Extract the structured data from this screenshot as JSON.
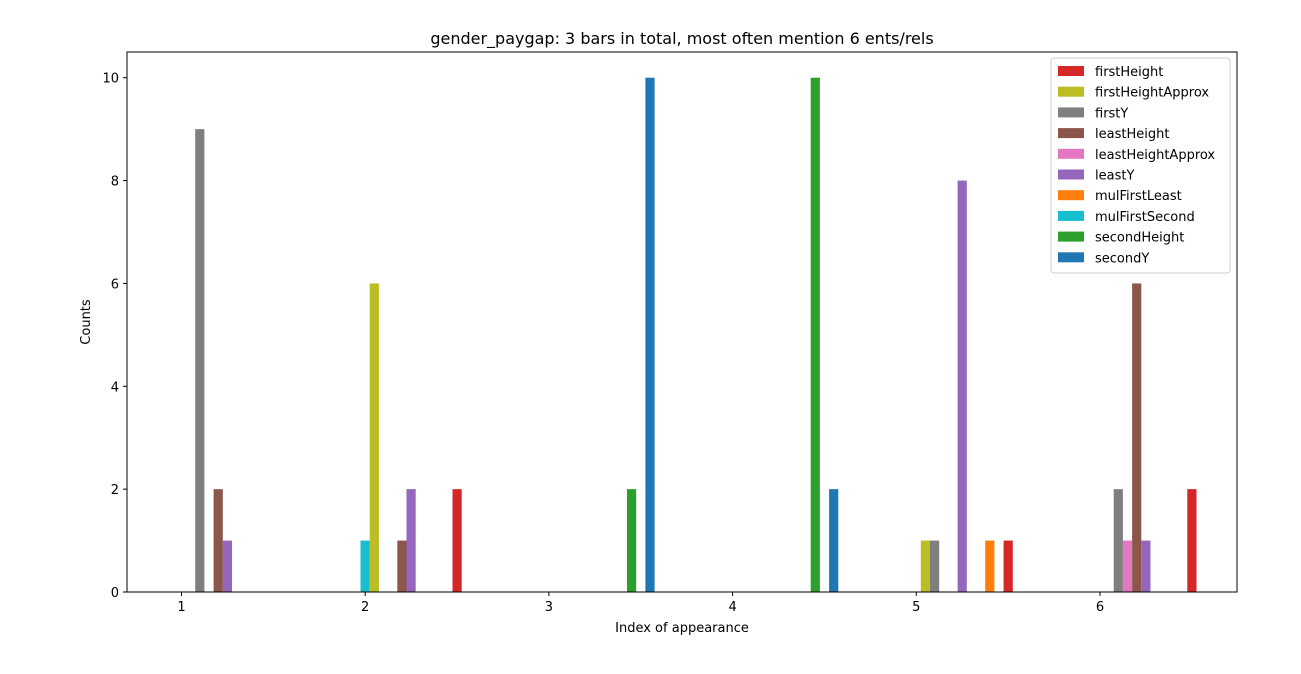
{
  "chart_data": {
    "type": "bar",
    "title": "gender_paygap: 3 bars in total, most often mention  6 ents/rels",
    "xlabel": "Index of appearance",
    "ylabel": "Counts",
    "categories": [
      "1",
      "2",
      "3",
      "4",
      "5",
      "6"
    ],
    "ylim": [
      0,
      10.5
    ],
    "yticks": [
      "0",
      "2",
      "4",
      "6",
      "8",
      "10"
    ],
    "legend_position": "top-right",
    "grid": false,
    "series": [
      {
        "name": "firstHeight",
        "color": "#d62728",
        "values": [
          0,
          2,
          0,
          0,
          1,
          2
        ],
        "slot": 8
      },
      {
        "name": "firstHeightApprox",
        "color": "#bcbd22",
        "values": [
          0,
          6,
          0,
          0,
          1,
          0
        ],
        "slot": -1
      },
      {
        "name": "firstY",
        "color": "#7f7f7f",
        "values": [
          9,
          0,
          0,
          0,
          1,
          2
        ],
        "slot": 0
      },
      {
        "name": "leastHeight",
        "color": "#8c564b",
        "values": [
          2,
          1,
          0,
          0,
          0,
          6
        ],
        "slot": 2
      },
      {
        "name": "leastHeightApprox",
        "color": "#e377c2",
        "values": [
          0,
          0,
          0,
          0,
          0,
          1
        ],
        "slot": 1
      },
      {
        "name": "leastY",
        "color": "#9467bd",
        "values": [
          1,
          2,
          0,
          0,
          8,
          1
        ],
        "slot": 3
      },
      {
        "name": "mulFirstLeast",
        "color": "#ff7f0e",
        "values": [
          0,
          0,
          0,
          0,
          1,
          0
        ],
        "slot": 6
      },
      {
        "name": "mulFirstSecond",
        "color": "#17becf",
        "values": [
          0,
          1,
          0,
          0,
          0,
          0
        ],
        "slot": -2
      },
      {
        "name": "secondHeight",
        "color": "#2ca02c",
        "values": [
          0,
          0,
          2,
          10,
          0,
          0
        ],
        "slot": 7
      },
      {
        "name": "secondY",
        "color": "#1f77b4",
        "values": [
          0,
          0,
          10,
          2,
          0,
          0
        ],
        "slot": 9
      }
    ]
  }
}
